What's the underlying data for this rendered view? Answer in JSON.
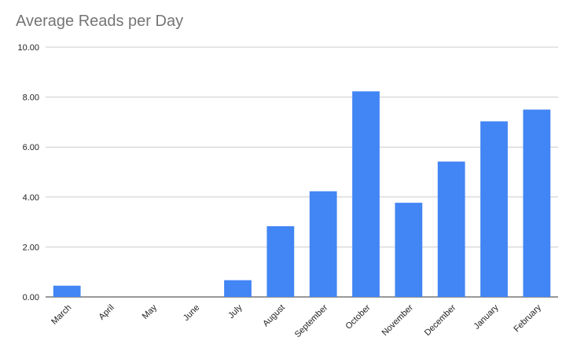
{
  "chart_data": {
    "type": "bar",
    "title": "Average Reads per Day",
    "xlabel": "",
    "ylabel": "",
    "categories": [
      "March",
      "April",
      "May",
      "June",
      "July",
      "August",
      "September",
      "October",
      "November",
      "December",
      "January",
      "February"
    ],
    "values": [
      0.45,
      0,
      0,
      0,
      0.67,
      2.83,
      4.23,
      8.23,
      3.77,
      5.42,
      7.03,
      7.5
    ],
    "ylim": [
      0,
      10
    ],
    "yticks": [
      "0.00",
      "2.00",
      "4.00",
      "6.00",
      "8.00",
      "10.00"
    ],
    "grid": true,
    "legend": "none",
    "bar_color": "#4285f4",
    "gridline_color": "#cccccc"
  }
}
